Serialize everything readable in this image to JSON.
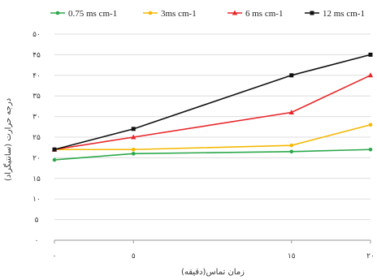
{
  "chart_data": {
    "type": "line",
    "categories": [
      "٠",
      "٥",
      "١٥",
      "٢٠"
    ],
    "x": [
      0,
      5,
      15,
      20
    ],
    "ylim": [
      0,
      50
    ],
    "yticks": [
      0,
      5,
      10,
      15,
      20,
      25,
      30,
      35,
      40,
      45,
      50
    ],
    "ytick_labels": [
      "٠",
      "۵",
      "١٠",
      "١۵",
      "٢٠",
      "٢۵",
      "٣٠",
      "٣۵",
      "۴٠",
      "۴۵",
      "۵٠"
    ],
    "xlabel": "زمان تماس(دقیقه)",
    "ylabel": "درجه حرارت (سانتیگراد)",
    "legend_position": "top",
    "grid": "horizontal",
    "series": [
      {
        "name": "0.75 ms cm-1",
        "color": "#2ca84a",
        "marker": "circle",
        "values": [
          19.5,
          21,
          21.5,
          22
        ]
      },
      {
        "name": "3ms cm-1",
        "color": "#f5b800",
        "marker": "circle",
        "values": [
          22,
          22,
          23,
          28
        ]
      },
      {
        "name": "6 ms cm-1",
        "color": "#e8262a",
        "marker": "triangle",
        "values": [
          22,
          25,
          31,
          40
        ]
      },
      {
        "name": "12 ms cm-1",
        "color": "#111111",
        "marker": "square",
        "values": [
          22,
          27,
          40,
          45
        ]
      }
    ]
  }
}
